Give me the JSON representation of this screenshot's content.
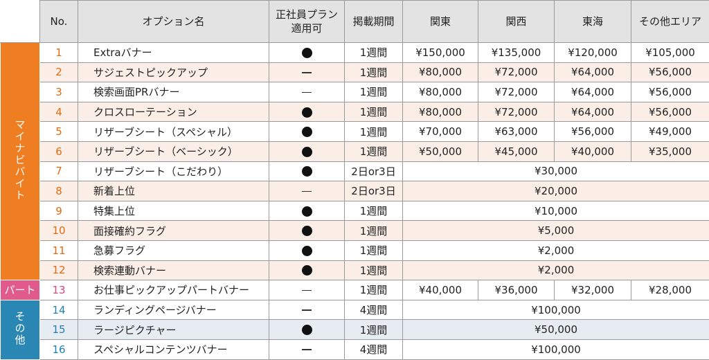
{
  "header": {
    "no": "No.",
    "option_name": "オプション名",
    "seishain_line1": "正社員プラン",
    "seishain_line2": "適用可",
    "period": "掲載期間",
    "kanto": "関東",
    "kansai": "関西",
    "tokai": "東海",
    "other": "その他エリア"
  },
  "categories": {
    "mynavi": "マイナビバイト",
    "part": "パート",
    "other": "その他"
  },
  "rows": [
    {
      "no": "1",
      "name": "Extraバナー",
      "seishain": "dot",
      "period": "1週間",
      "kanto": "¥150,000",
      "kansai": "¥135,000",
      "tokai": "¥120,000",
      "other": "¥105,000"
    },
    {
      "no": "2",
      "name": "サジェストピックアップ",
      "seishain": "dash",
      "period": "1週間",
      "kanto": "¥80,000",
      "kansai": "¥72,000",
      "tokai": "¥64,000",
      "other": "¥56,000"
    },
    {
      "no": "3",
      "name": "検索画面PRバナー",
      "seishain": "dash",
      "period": "1週間",
      "kanto": "¥80,000",
      "kansai": "¥72,000",
      "tokai": "¥64,000",
      "other": "¥56,000"
    },
    {
      "no": "4",
      "name": "クロスローテーション",
      "seishain": "dot",
      "period": "1週間",
      "kanto": "¥80,000",
      "kansai": "¥72,000",
      "tokai": "¥64,000",
      "other": "¥56,000"
    },
    {
      "no": "5",
      "name": "リザーブシート（スペシャル）",
      "seishain": "dot",
      "period": "1週間",
      "kanto": "¥70,000",
      "kansai": "¥63,000",
      "tokai": "¥56,000",
      "other": "¥49,000"
    },
    {
      "no": "6",
      "name": "リザーブシート（ベーシック）",
      "seishain": "dot",
      "period": "1週間",
      "kanto": "¥50,000",
      "kansai": "¥45,000",
      "tokai": "¥40,000",
      "other": "¥35,000"
    },
    {
      "no": "7",
      "name": "リザーブシート（こだわり）",
      "seishain": "dot",
      "period": "2日or3日",
      "all": "¥30,000"
    },
    {
      "no": "8",
      "name": "新着上位",
      "seishain": "dash",
      "period": "2日or3日",
      "all": "¥20,000"
    },
    {
      "no": "9",
      "name": "特集上位",
      "seishain": "dot",
      "period": "1週間",
      "all": "¥10,000"
    },
    {
      "no": "10",
      "name": "面接確約フラグ",
      "seishain": "dot",
      "period": "1週間",
      "all": "¥5,000"
    },
    {
      "no": "11",
      "name": "急募フラグ",
      "seishain": "dot",
      "period": "1週間",
      "all": "¥2,000"
    },
    {
      "no": "12",
      "name": "検索連動バナー",
      "seishain": "dot",
      "period": "1週間",
      "all": "¥2,000"
    },
    {
      "no": "13",
      "name": "お仕事ピックアップパートバナー",
      "seishain": "dash",
      "period": "1週間",
      "kanto": "¥40,000",
      "kansai": "¥36,000",
      "tokai": "¥32,000",
      "other": "¥28,000"
    },
    {
      "no": "14",
      "name": "ランディングページバナー",
      "seishain": "dash",
      "period": "4週間",
      "all": "¥100,000"
    },
    {
      "no": "15",
      "name": "ラージピクチャー",
      "seishain": "dot",
      "period": "1週間",
      "all": "¥50,000"
    },
    {
      "no": "16",
      "name": "スペシャルコンテンツバナー",
      "seishain": "dash",
      "period": "4週間",
      "all": "¥100,000"
    }
  ],
  "colors": {
    "mynavi": "#ef7e22",
    "part": "#e05a8c",
    "other": "#2a87b3",
    "header_bg": "#e3e3e3",
    "mynavi_alt_row": "#fbeee6",
    "other_alt_row": "#e6ecf1"
  },
  "icons": {
    "dot": "filled-circle-icon",
    "dash": "dash-icon"
  }
}
